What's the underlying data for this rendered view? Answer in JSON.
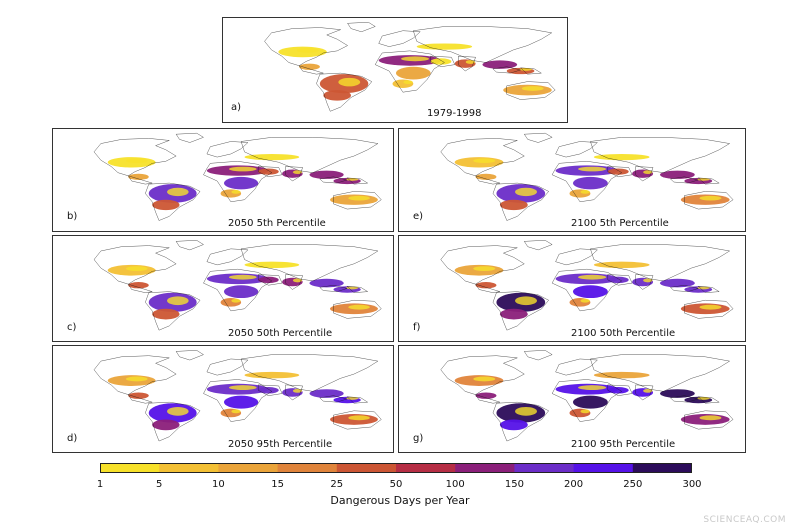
{
  "panels": [
    {
      "letter": "a)",
      "title": "1979-1998",
      "scenario": "hist"
    },
    {
      "letter": "b)",
      "title": "2050 5th Percentile",
      "scenario": "low50"
    },
    {
      "letter": "e)",
      "title": "2100 5th Percentile",
      "scenario": "low00"
    },
    {
      "letter": "c)",
      "title": "2050 50th Percentile",
      "scenario": "mid50"
    },
    {
      "letter": "f)",
      "title": "2100 50th Percentile",
      "scenario": "mid00"
    },
    {
      "letter": "d)",
      "title": "2050 95th Percentile",
      "scenario": "high50"
    },
    {
      "letter": "g)",
      "title": "2100 95th Percentile",
      "scenario": "high00"
    }
  ],
  "colorbar": {
    "ticks": [
      "1",
      "5",
      "10",
      "15",
      "25",
      "50",
      "100",
      "150",
      "200",
      "250",
      "300"
    ],
    "colors": [
      "#f7e12a",
      "#f3c035",
      "#eaa43a",
      "#e0843b",
      "#cc5634",
      "#b62e45",
      "#8b1f7a",
      "#6b2dc8",
      "#5512e8",
      "#2c0c5a"
    ],
    "label": "Dangerous Days per Year"
  },
  "watermark": "SCIENCEAQ.COM"
}
